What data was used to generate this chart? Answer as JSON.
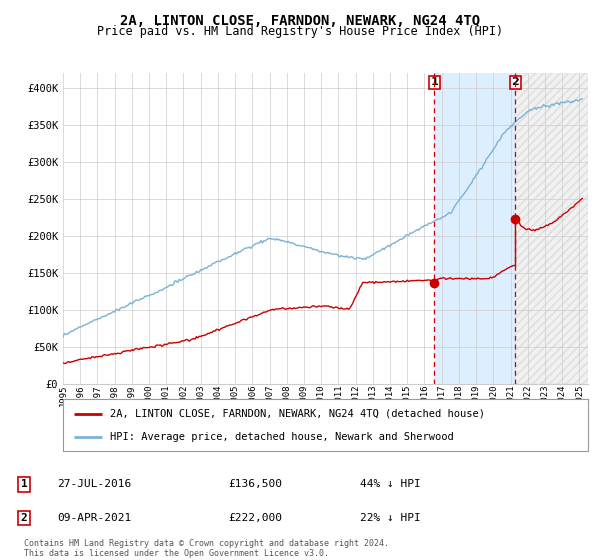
{
  "title": "2A, LINTON CLOSE, FARNDON, NEWARK, NG24 4TQ",
  "subtitle": "Price paid vs. HM Land Registry's House Price Index (HPI)",
  "ylabel_ticks": [
    "£0",
    "£50K",
    "£100K",
    "£150K",
    "£200K",
    "£250K",
    "£300K",
    "£350K",
    "£400K"
  ],
  "ytick_values": [
    0,
    50000,
    100000,
    150000,
    200000,
    250000,
    300000,
    350000,
    400000
  ],
  "ylim": [
    0,
    420000
  ],
  "xlim_start": 1995.0,
  "xlim_end": 2025.5,
  "hpi_color": "#7ab3d4",
  "price_color": "#cc0000",
  "dashed_line_color": "#cc0000",
  "shade_between_color": "#ddeeff",
  "shade_after_color": "#e8e8e8",
  "sale1_year": 2016.58,
  "sale1_price": 136500,
  "sale1_label": "1",
  "sale2_year": 2021.27,
  "sale2_price": 222000,
  "sale2_label": "2",
  "legend_entry1": "2A, LINTON CLOSE, FARNDON, NEWARK, NG24 4TQ (detached house)",
  "legend_entry2": "HPI: Average price, detached house, Newark and Sherwood",
  "table_row1": [
    "1",
    "27-JUL-2016",
    "£136,500",
    "44% ↓ HPI"
  ],
  "table_row2": [
    "2",
    "09-APR-2021",
    "£222,000",
    "22% ↓ HPI"
  ],
  "footnote": "Contains HM Land Registry data © Crown copyright and database right 2024.\nThis data is licensed under the Open Government Licence v3.0.",
  "background_color": "#ffffff",
  "plot_bg_color": "#ffffff",
  "grid_color": "#cccccc"
}
